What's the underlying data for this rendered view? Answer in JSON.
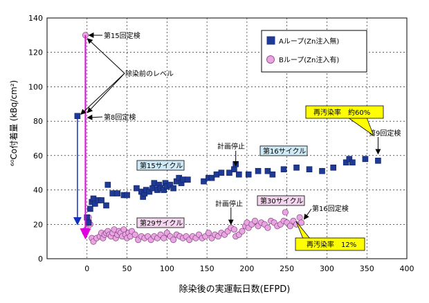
{
  "chart_data": {
    "type": "scatter",
    "xlabel": "除染後の実運転日数(EFPD)",
    "ylabel": "⁶⁰Co付着量 (kBq/cm²)",
    "xlim": [
      -50,
      400
    ],
    "ylim": [
      0,
      140
    ],
    "xticks": [
      0,
      50,
      100,
      150,
      200,
      250,
      300,
      350,
      400
    ],
    "yticks": [
      0,
      20,
      40,
      60,
      80,
      100,
      120,
      140
    ],
    "grid": true,
    "legend_position": "top-right",
    "series": [
      {
        "name": "Aループ(Zn注入無)",
        "color": "#1f3a93",
        "marker": "square",
        "points": [
          [
            -12,
            83
          ],
          [
            -2,
            16
          ],
          [
            0,
            24
          ],
          [
            2,
            21
          ],
          [
            4,
            29
          ],
          [
            6,
            33
          ],
          [
            8,
            35
          ],
          [
            10,
            32
          ],
          [
            14,
            34
          ],
          [
            18,
            34
          ],
          [
            24,
            31
          ],
          [
            26,
            43
          ],
          [
            32,
            38
          ],
          [
            38,
            38
          ],
          [
            46,
            37
          ],
          [
            50,
            37
          ],
          [
            62,
            41
          ],
          [
            68,
            39
          ],
          [
            70,
            36
          ],
          [
            72,
            38
          ],
          [
            74,
            40
          ],
          [
            78,
            39
          ],
          [
            82,
            41
          ],
          [
            84,
            44
          ],
          [
            88,
            40
          ],
          [
            90,
            43
          ],
          [
            92,
            41
          ],
          [
            96,
            40
          ],
          [
            98,
            44
          ],
          [
            100,
            42
          ],
          [
            104,
            43
          ],
          [
            108,
            41
          ],
          [
            112,
            45
          ],
          [
            115,
            47
          ],
          [
            118,
            44
          ],
          [
            120,
            46
          ],
          [
            126,
            46
          ],
          [
            146,
            45
          ],
          [
            152,
            47
          ],
          [
            156,
            47
          ],
          [
            162,
            49
          ],
          [
            168,
            50
          ],
          [
            178,
            50
          ],
          [
            184,
            52
          ],
          [
            186,
            55
          ],
          [
            190,
            49
          ],
          [
            202,
            49
          ],
          [
            214,
            51
          ],
          [
            226,
            51
          ],
          [
            232,
            49
          ],
          [
            246,
            52
          ],
          [
            262,
            53
          ],
          [
            278,
            52
          ],
          [
            294,
            51
          ],
          [
            308,
            53
          ],
          [
            324,
            56
          ],
          [
            328,
            58
          ],
          [
            332,
            56
          ],
          [
            348,
            58
          ],
          [
            364,
            57
          ]
        ]
      },
      {
        "name": "Bループ(Zn注入有)",
        "color": "#d98bd0",
        "marker": "circle",
        "points": [
          [
            -2,
            130
          ],
          [
            -1,
            17
          ],
          [
            2,
            24
          ],
          [
            4,
            20
          ],
          [
            6,
            12
          ],
          [
            8,
            10
          ],
          [
            12,
            12
          ],
          [
            16,
            13
          ],
          [
            18,
            15
          ],
          [
            20,
            12
          ],
          [
            22,
            14
          ],
          [
            24,
            15
          ],
          [
            26,
            16
          ],
          [
            28,
            14
          ],
          [
            30,
            13
          ],
          [
            32,
            15
          ],
          [
            34,
            17
          ],
          [
            36,
            12
          ],
          [
            38,
            14
          ],
          [
            40,
            16
          ],
          [
            42,
            15
          ],
          [
            44,
            13
          ],
          [
            46,
            17
          ],
          [
            48,
            14
          ],
          [
            50,
            12
          ],
          [
            52,
            15
          ],
          [
            54,
            13
          ],
          [
            56,
            16
          ],
          [
            60,
            14
          ],
          [
            64,
            11
          ],
          [
            68,
            13
          ],
          [
            72,
            12
          ],
          [
            76,
            13
          ],
          [
            80,
            11
          ],
          [
            84,
            13
          ],
          [
            88,
            12
          ],
          [
            92,
            14
          ],
          [
            96,
            12
          ],
          [
            100,
            15
          ],
          [
            104,
            13
          ],
          [
            108,
            11
          ],
          [
            112,
            14
          ],
          [
            116,
            13
          ],
          [
            120,
            12
          ],
          [
            124,
            13
          ],
          [
            128,
            11
          ],
          [
            132,
            13
          ],
          [
            136,
            12
          ],
          [
            140,
            14
          ],
          [
            144,
            12
          ],
          [
            148,
            13
          ],
          [
            152,
            15
          ],
          [
            156,
            12
          ],
          [
            160,
            14
          ],
          [
            164,
            13
          ],
          [
            168,
            15
          ],
          [
            172,
            14
          ],
          [
            176,
            16
          ],
          [
            180,
            18
          ],
          [
            184,
            17
          ],
          [
            186,
            13
          ],
          [
            190,
            14
          ],
          [
            194,
            16
          ],
          [
            198,
            19
          ],
          [
            200,
            21
          ],
          [
            202,
            18
          ],
          [
            206,
            20
          ],
          [
            210,
            22
          ],
          [
            214,
            19
          ],
          [
            218,
            21
          ],
          [
            222,
            20
          ],
          [
            226,
            18
          ],
          [
            230,
            22
          ],
          [
            234,
            21
          ],
          [
            238,
            19
          ],
          [
            242,
            20
          ],
          [
            246,
            22
          ],
          [
            248,
            27
          ],
          [
            250,
            21
          ],
          [
            254,
            19
          ],
          [
            258,
            22
          ],
          [
            262,
            20
          ],
          [
            266,
            24
          ],
          [
            268,
            21
          ]
        ]
      }
    ],
    "annotations": {
      "label_15th_inspection": "第15回定検",
      "label_pre_decon_level": "除染前のレベル",
      "label_8th_inspection": "第8回定検",
      "label_recontam_60": "再汚染率　約60%",
      "label_9th_inspection": "第9回定検",
      "label_plan_stop_a": "計画停止",
      "label_16th_cycle": "第16サイクル",
      "label_15th_cycle": "第15サイクル",
      "label_plan_stop_b": "計画停止",
      "label_30th_cycle": "第30サイクル",
      "label_16th_inspection": "第16回定検",
      "label_29th_cycle": "第29サイクル",
      "label_recontam_12": "再汚染率　12%"
    }
  }
}
